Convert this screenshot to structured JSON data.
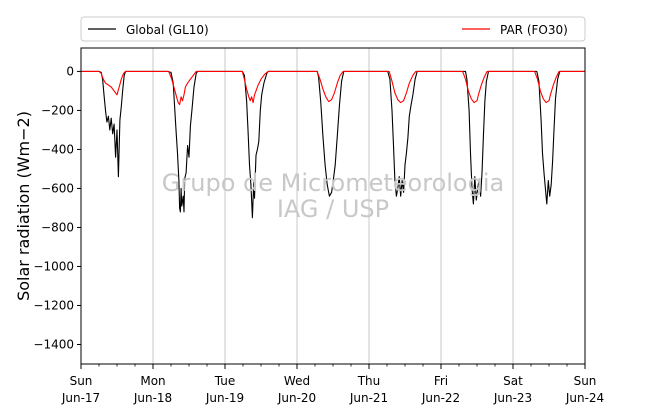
{
  "chart_data": {
    "type": "line",
    "title": "",
    "ylabel": "Solar radiation ($Wm{-2}$)",
    "ylabel_display": "Solar radiation (Wm−2)",
    "xlabel": "",
    "ylim": [
      -1500,
      120
    ],
    "yticks": [
      0,
      -200,
      -400,
      -600,
      -800,
      -1000,
      -1200,
      -1400
    ],
    "ytick_labels": [
      "0",
      "−200",
      "−400",
      "−600",
      "−800",
      "−1000",
      "−1200",
      "−1400"
    ],
    "xlim_days": [
      0,
      7
    ],
    "xticks": [
      {
        "day": 0,
        "weekday": "Sun",
        "date": "Jun-17"
      },
      {
        "day": 1,
        "weekday": "Mon",
        "date": "Jun-18"
      },
      {
        "day": 2,
        "weekday": "Tue",
        "date": "Jun-19"
      },
      {
        "day": 3,
        "weekday": "Wed",
        "date": "Jun-20"
      },
      {
        "day": 4,
        "weekday": "Thu",
        "date": "Jun-21"
      },
      {
        "day": 5,
        "weekday": "Fri",
        "date": "Jun-22"
      },
      {
        "day": 6,
        "weekday": "Sat",
        "date": "Jun-23"
      },
      {
        "day": 7,
        "weekday": "Sun",
        "date": "Jun-24"
      }
    ],
    "grid": "vertical",
    "legend_position": "top, outside",
    "watermark": [
      "Grupo de Micrometeorologia",
      "IAG / USP"
    ],
    "series": [
      {
        "name": "Global (GL10)",
        "color": "#000000",
        "points": [
          [
            0.0,
            0
          ],
          [
            0.25,
            0
          ],
          [
            0.28,
            -5
          ],
          [
            0.3,
            -40
          ],
          [
            0.32,
            -120
          ],
          [
            0.34,
            -200
          ],
          [
            0.36,
            -260
          ],
          [
            0.38,
            -230
          ],
          [
            0.4,
            -300
          ],
          [
            0.42,
            -240
          ],
          [
            0.44,
            -320
          ],
          [
            0.46,
            -270
          ],
          [
            0.48,
            -440
          ],
          [
            0.5,
            -300
          ],
          [
            0.52,
            -540
          ],
          [
            0.54,
            -250
          ],
          [
            0.56,
            -180
          ],
          [
            0.58,
            -90
          ],
          [
            0.6,
            -20
          ],
          [
            0.62,
            0
          ],
          [
            1.0,
            0
          ],
          [
            1.2,
            0
          ],
          [
            1.25,
            -5
          ],
          [
            1.28,
            -60
          ],
          [
            1.3,
            -180
          ],
          [
            1.32,
            -300
          ],
          [
            1.34,
            -420
          ],
          [
            1.36,
            -560
          ],
          [
            1.37,
            -700
          ],
          [
            1.38,
            -720
          ],
          [
            1.39,
            -600
          ],
          [
            1.4,
            -690
          ],
          [
            1.42,
            -640
          ],
          [
            1.43,
            -720
          ],
          [
            1.44,
            -550
          ],
          [
            1.46,
            -520
          ],
          [
            1.48,
            -380
          ],
          [
            1.5,
            -440
          ],
          [
            1.52,
            -280
          ],
          [
            1.54,
            -200
          ],
          [
            1.57,
            -80
          ],
          [
            1.6,
            -10
          ],
          [
            1.62,
            0
          ],
          [
            2.0,
            0
          ],
          [
            2.24,
            0
          ],
          [
            2.27,
            -20
          ],
          [
            2.3,
            -150
          ],
          [
            2.32,
            -300
          ],
          [
            2.34,
            -480
          ],
          [
            2.36,
            -580
          ],
          [
            2.38,
            -750
          ],
          [
            2.4,
            -560
          ],
          [
            2.41,
            -650
          ],
          [
            2.43,
            -430
          ],
          [
            2.45,
            -400
          ],
          [
            2.47,
            -360
          ],
          [
            2.49,
            -200
          ],
          [
            2.51,
            -120
          ],
          [
            2.54,
            -60
          ],
          [
            2.58,
            -10
          ],
          [
            2.6,
            0
          ],
          [
            3.0,
            0
          ],
          [
            3.28,
            0
          ],
          [
            3.3,
            -30
          ],
          [
            3.33,
            -160
          ],
          [
            3.36,
            -330
          ],
          [
            3.39,
            -480
          ],
          [
            3.42,
            -580
          ],
          [
            3.45,
            -640
          ],
          [
            3.48,
            -620
          ],
          [
            3.5,
            -570
          ],
          [
            3.53,
            -480
          ],
          [
            3.56,
            -330
          ],
          [
            3.59,
            -170
          ],
          [
            3.62,
            -50
          ],
          [
            3.65,
            0
          ],
          [
            4.0,
            0
          ],
          [
            4.26,
            0
          ],
          [
            4.29,
            -40
          ],
          [
            4.32,
            -200
          ],
          [
            4.34,
            -380
          ],
          [
            4.36,
            -560
          ],
          [
            4.38,
            -640
          ],
          [
            4.4,
            -600
          ],
          [
            4.42,
            -540
          ],
          [
            4.44,
            -640
          ],
          [
            4.46,
            -560
          ],
          [
            4.48,
            -620
          ],
          [
            4.5,
            -480
          ],
          [
            4.52,
            -420
          ],
          [
            4.54,
            -340
          ],
          [
            4.56,
            -230
          ],
          [
            4.58,
            -180
          ],
          [
            4.61,
            -120
          ],
          [
            4.64,
            -40
          ],
          [
            4.67,
            0
          ],
          [
            5.0,
            0
          ],
          [
            5.34,
            0
          ],
          [
            5.36,
            -40
          ],
          [
            5.39,
            -200
          ],
          [
            5.41,
            -420
          ],
          [
            5.43,
            -600
          ],
          [
            5.45,
            -680
          ],
          [
            5.47,
            -540
          ],
          [
            5.49,
            -660
          ],
          [
            5.51,
            -600
          ],
          [
            5.53,
            -550
          ],
          [
            5.55,
            -640
          ],
          [
            5.57,
            -520
          ],
          [
            5.59,
            -320
          ],
          [
            5.61,
            -150
          ],
          [
            5.63,
            -50
          ],
          [
            5.66,
            0
          ],
          [
            6.0,
            0
          ],
          [
            6.33,
            0
          ],
          [
            6.36,
            -50
          ],
          [
            6.39,
            -250
          ],
          [
            6.41,
            -420
          ],
          [
            6.43,
            -520
          ],
          [
            6.45,
            -600
          ],
          [
            6.47,
            -680
          ],
          [
            6.49,
            -560
          ],
          [
            6.51,
            -640
          ],
          [
            6.53,
            -580
          ],
          [
            6.55,
            -460
          ],
          [
            6.57,
            -300
          ],
          [
            6.59,
            -140
          ],
          [
            6.62,
            -40
          ],
          [
            6.65,
            0
          ],
          [
            7.0,
            0
          ]
        ]
      },
      {
        "name": "PAR (FO30)",
        "color": "#ff0000",
        "points": [
          [
            0.0,
            0
          ],
          [
            0.25,
            0
          ],
          [
            0.28,
            -10
          ],
          [
            0.31,
            -40
          ],
          [
            0.34,
            -60
          ],
          [
            0.38,
            -70
          ],
          [
            0.42,
            -80
          ],
          [
            0.46,
            -100
          ],
          [
            0.5,
            -120
          ],
          [
            0.53,
            -80
          ],
          [
            0.56,
            -40
          ],
          [
            0.59,
            -10
          ],
          [
            0.62,
            0
          ],
          [
            1.0,
            0
          ],
          [
            1.22,
            0
          ],
          [
            1.26,
            -40
          ],
          [
            1.29,
            -80
          ],
          [
            1.32,
            -120
          ],
          [
            1.35,
            -160
          ],
          [
            1.37,
            -170
          ],
          [
            1.39,
            -130
          ],
          [
            1.41,
            -150
          ],
          [
            1.43,
            -120
          ],
          [
            1.45,
            -80
          ],
          [
            1.48,
            -60
          ],
          [
            1.52,
            -40
          ],
          [
            1.56,
            -20
          ],
          [
            1.6,
            0
          ],
          [
            2.0,
            0
          ],
          [
            2.24,
            0
          ],
          [
            2.27,
            -40
          ],
          [
            2.3,
            -90
          ],
          [
            2.33,
            -130
          ],
          [
            2.35,
            -150
          ],
          [
            2.37,
            -130
          ],
          [
            2.39,
            -160
          ],
          [
            2.41,
            -120
          ],
          [
            2.43,
            -100
          ],
          [
            2.46,
            -70
          ],
          [
            2.5,
            -40
          ],
          [
            2.55,
            -15
          ],
          [
            2.6,
            0
          ],
          [
            3.0,
            0
          ],
          [
            3.28,
            0
          ],
          [
            3.32,
            -40
          ],
          [
            3.36,
            -90
          ],
          [
            3.4,
            -130
          ],
          [
            3.44,
            -155
          ],
          [
            3.48,
            -145
          ],
          [
            3.52,
            -110
          ],
          [
            3.56,
            -60
          ],
          [
            3.6,
            -20
          ],
          [
            3.64,
            0
          ],
          [
            4.0,
            0
          ],
          [
            4.28,
            0
          ],
          [
            4.32,
            -50
          ],
          [
            4.36,
            -110
          ],
          [
            4.4,
            -145
          ],
          [
            4.44,
            -160
          ],
          [
            4.48,
            -150
          ],
          [
            4.52,
            -110
          ],
          [
            4.56,
            -60
          ],
          [
            4.61,
            -20
          ],
          [
            4.65,
            0
          ],
          [
            5.0,
            0
          ],
          [
            5.3,
            0
          ],
          [
            5.34,
            -40
          ],
          [
            5.38,
            -100
          ],
          [
            5.42,
            -140
          ],
          [
            5.46,
            -160
          ],
          [
            5.5,
            -150
          ],
          [
            5.52,
            -120
          ],
          [
            5.56,
            -70
          ],
          [
            5.6,
            -30
          ],
          [
            5.64,
            0
          ],
          [
            6.0,
            0
          ],
          [
            6.3,
            0
          ],
          [
            6.34,
            -40
          ],
          [
            6.38,
            -100
          ],
          [
            6.42,
            -140
          ],
          [
            6.46,
            -160
          ],
          [
            6.5,
            -150
          ],
          [
            6.52,
            -120
          ],
          [
            6.56,
            -70
          ],
          [
            6.6,
            -30
          ],
          [
            6.64,
            0
          ],
          [
            7.0,
            0
          ]
        ]
      }
    ]
  }
}
